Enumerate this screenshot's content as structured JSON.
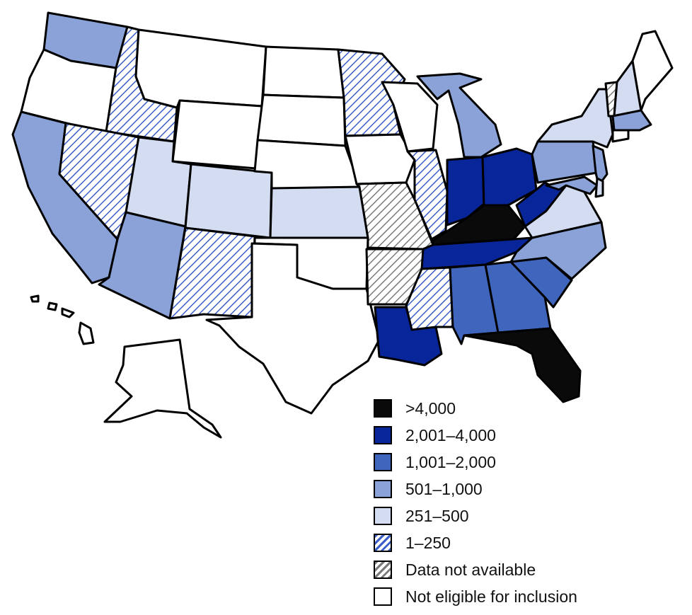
{
  "colors": {
    "gt4000": "#0a0a0a",
    "2001_4000": "#08269a",
    "1001_2000": "#3f65bd",
    "501_1000": "#8aa2d8",
    "251_500": "#d3dcf0",
    "1_250_hatch": "#3b5fc8",
    "not_available_hatch": "#7a7a7a",
    "not_eligible": "#ffffff",
    "border": "#000000"
  },
  "legend": [
    {
      "key": "gt4000",
      "label": ">4,000",
      "fill": "#0a0a0a",
      "pattern": "solid"
    },
    {
      "key": "2001_4000",
      "label": "2,001–4,000",
      "fill": "#08269a",
      "pattern": "solid"
    },
    {
      "key": "1001_2000",
      "label": "1,001–2,000",
      "fill": "#3f65bd",
      "pattern": "solid"
    },
    {
      "key": "501_1000",
      "label": "501–1,000",
      "fill": "#8aa2d8",
      "pattern": "solid"
    },
    {
      "key": "251_500",
      "label": "251–500",
      "fill": "#d3dcf0",
      "pattern": "solid"
    },
    {
      "key": "1_250",
      "label": "1–250",
      "fill": "#3b5fc8",
      "pattern": "blue-hatch"
    },
    {
      "key": "not_available",
      "label": "Data not available",
      "fill": "#7a7a7a",
      "pattern": "gray-hatch"
    },
    {
      "key": "not_eligible",
      "label": "Not eligible for inclusion",
      "fill": "#ffffff",
      "pattern": "solid"
    }
  ],
  "states": {
    "WA": "501_1000",
    "OR": "not_eligible",
    "CA": "501_1000",
    "ID": "1_250",
    "NV": "1_250",
    "MT": "not_eligible",
    "WY": "not_eligible",
    "UT": "251_500",
    "AZ": "501_1000",
    "CO": "251_500",
    "NM": "1_250",
    "ND": "not_eligible",
    "SD": "not_eligible",
    "NE": "not_eligible",
    "KS": "251_500",
    "OK": "not_eligible",
    "TX": "not_eligible",
    "MN": "1_250",
    "IA": "not_eligible",
    "MO": "not_available",
    "AR": "not_available",
    "LA": "2001_4000",
    "WI": "not_eligible",
    "IL": "1_250",
    "MI": "501_1000",
    "IN": "2001_4000",
    "OH": "2001_4000",
    "KY": "gt4000",
    "TN": "2001_4000",
    "MS": "1_250",
    "AL": "1001_2000",
    "GA": "1001_2000",
    "FL": "gt4000",
    "SC": "1001_2000",
    "NC": "501_1000",
    "VA": "251_500",
    "WV": "2001_4000",
    "PA": "501_1000",
    "NY": "251_500",
    "VT": "not_available",
    "NH": "251_500",
    "ME": "not_eligible",
    "MA": "501_1000",
    "CT": "not_eligible",
    "NJ": "501_1000",
    "DE": "251_500",
    "MD": "501_1000",
    "AK": "not_eligible",
    "HI": "not_eligible"
  }
}
